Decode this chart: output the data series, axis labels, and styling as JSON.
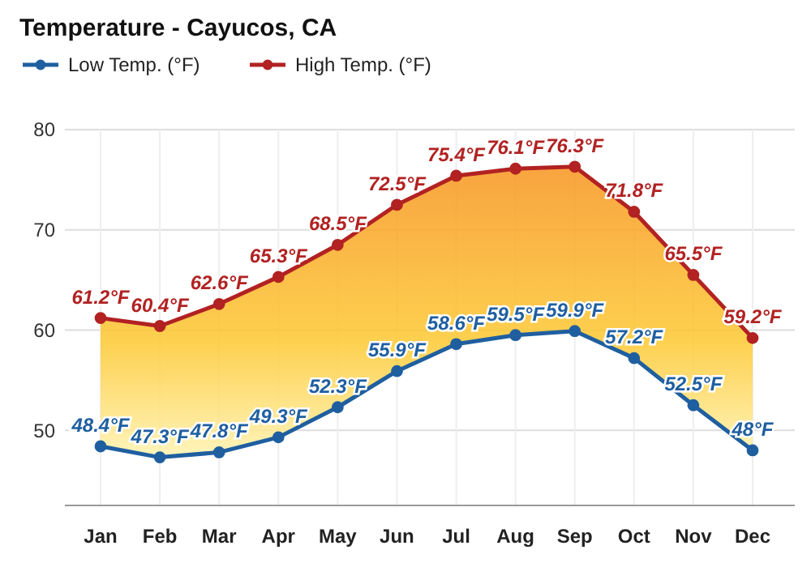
{
  "chart_data": {
    "type": "line",
    "title": "Temperature - Cayucos, CA",
    "categories": [
      "Jan",
      "Feb",
      "Mar",
      "Apr",
      "May",
      "Jun",
      "Jul",
      "Aug",
      "Sep",
      "Oct",
      "Nov",
      "Dec"
    ],
    "series": [
      {
        "name": "Low Temp. (°F)",
        "color": "#1f5fa0",
        "values": [
          48.4,
          47.3,
          47.8,
          49.3,
          52.3,
          55.9,
          58.6,
          59.5,
          59.9,
          57.2,
          52.5,
          48
        ],
        "value_labels": [
          "48.4°F",
          "47.3°F",
          "47.8°F",
          "49.3°F",
          "52.3°F",
          "55.9°F",
          "58.6°F",
          "59.5°F",
          "59.9°F",
          "57.2°F",
          "52.5°F",
          "48°F"
        ]
      },
      {
        "name": "High Temp. (°F)",
        "color": "#b22222",
        "values": [
          61.2,
          60.4,
          62.6,
          65.3,
          68.5,
          72.5,
          75.4,
          76.1,
          76.3,
          71.8,
          65.5,
          59.2
        ],
        "lower": [
          48.4,
          47.3,
          47.8,
          49.3,
          52.3,
          55.9,
          58.6,
          59.5,
          59.9,
          57.2,
          52.5,
          48
        ],
        "upper": [
          61.2,
          60.4,
          62.6,
          65.3,
          68.5,
          72.5,
          75.4,
          76.1,
          76.3,
          71.8,
          65.5,
          59.2
        ],
        "value_labels": [
          "61.2°F",
          "60.4°F",
          "62.6°F",
          "65.3°F",
          "68.5°F",
          "72.5°F",
          "75.4°F",
          "76.1°F",
          "76.3°F",
          "71.8°F",
          "65.5°F",
          "59.2°F"
        ]
      }
    ],
    "ylim": [
      42.5,
      80
    ],
    "yticks": [
      50,
      60,
      70,
      80
    ],
    "grid": true,
    "legend": "top left",
    "marker": "circle",
    "line_style": "solid"
  }
}
